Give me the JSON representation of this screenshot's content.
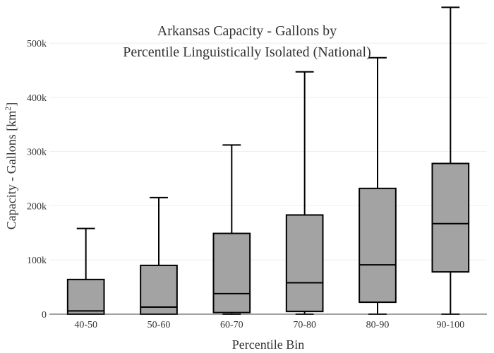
{
  "chart_data": {
    "type": "box",
    "title_lines": [
      "Arkansas Capacity - Gallons by",
      "Percentile Linguistically Isolated (National)"
    ],
    "xlabel": "Percentile Bin",
    "ylabel_main": "Capacity - Gallons  [km",
    "ylabel_sup": "2",
    "ylabel_end": "]",
    "ylim": [
      0,
      560000
    ],
    "yticks": [
      0,
      100000,
      200000,
      300000,
      400000,
      500000
    ],
    "ytick_labels": [
      "0",
      "100k",
      "200k",
      "300k",
      "400k",
      "500k"
    ],
    "grid": true,
    "box_color": "#a3a3a3",
    "categories": [
      "40-50",
      "50-60",
      "60-70",
      "70-80",
      "80-90",
      "90-100"
    ],
    "boxes": [
      {
        "min": 0,
        "q1": 0,
        "median": 6000,
        "q3": 64000,
        "max": 158000
      },
      {
        "min": 0,
        "q1": 0,
        "median": 13000,
        "q3": 90000,
        "max": 215000
      },
      {
        "min": 0,
        "q1": 3000,
        "median": 38000,
        "q3": 149000,
        "max": 312000
      },
      {
        "min": 0,
        "q1": 5000,
        "median": 58000,
        "q3": 183000,
        "max": 447000
      },
      {
        "min": 0,
        "q1": 22000,
        "median": 91000,
        "q3": 232000,
        "max": 473000
      },
      {
        "min": 0,
        "q1": 78000,
        "median": 167000,
        "q3": 278000,
        "max": 566000
      }
    ]
  }
}
